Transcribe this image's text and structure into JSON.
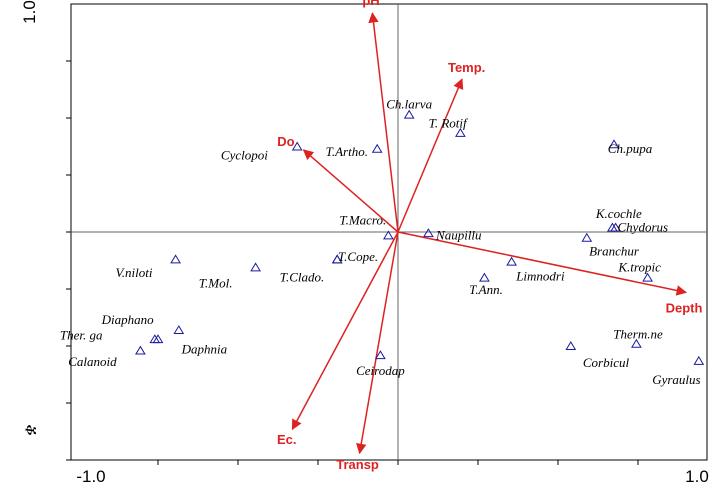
{
  "chart_data": {
    "type": "scatter",
    "subtype": "ordination-biplot",
    "xlim": [
      -1.0,
      1.0
    ],
    "ylim": [
      -1.0,
      1.0
    ],
    "x_tick_labels": [
      "-1.0",
      "1.0"
    ],
    "y_tick_labels": [
      "1.0"
    ],
    "y_bottom_mark": "ቋ",
    "grid": false,
    "colors": {
      "species": "#1a1aa0",
      "environment": "#dd2222",
      "axes": "#666666",
      "frame": "#000000"
    },
    "species": [
      {
        "name": "Ch.larva",
        "x": 0.07,
        "y": 1.03
      },
      {
        "name": "T. Rotif",
        "x": 0.39,
        "y": 0.87
      },
      {
        "name": "T.Artho.",
        "x": -0.13,
        "y": 0.73
      },
      {
        "name": "Cyclopoi",
        "x": -0.63,
        "y": 0.75
      },
      {
        "name": "Ch.pupa",
        "x": 1.35,
        "y": 0.77
      },
      {
        "name": "K.cochle",
        "x": 1.34,
        "y": 0.04
      },
      {
        "name": "Chydorus",
        "x": 1.36,
        "y": 0.04
      },
      {
        "name": "Branchur",
        "x": 1.18,
        "y": -0.05
      },
      {
        "name": "K.tropic",
        "x": 1.56,
        "y": -0.4
      },
      {
        "name": "T.Macro.",
        "x": -0.06,
        "y": -0.03
      },
      {
        "name": "Naupillu",
        "x": 0.19,
        "y": -0.01
      },
      {
        "name": "T.Cope.",
        "x": -0.38,
        "y": -0.24
      },
      {
        "name": "T.Ann.",
        "x": 0.54,
        "y": -0.4
      },
      {
        "name": "Limnodri",
        "x": 0.71,
        "y": -0.26
      },
      {
        "name": "V.niloti",
        "x": -1.39,
        "y": -0.24
      },
      {
        "name": "T.Mol.",
        "x": -0.89,
        "y": -0.31
      },
      {
        "name": "T.Clado.",
        "x": -0.38,
        "y": -0.24
      },
      {
        "name": "Diaphano",
        "x": -1.37,
        "y": -0.86
      },
      {
        "name": "Ther. ga",
        "x": -1.52,
        "y": -0.94
      },
      {
        "name": "Daphnia",
        "x": -1.5,
        "y": -0.94
      },
      {
        "name": "Calanoid",
        "x": -1.61,
        "y": -1.04
      },
      {
        "name": "Ceirodap",
        "x": -0.11,
        "y": -1.08
      },
      {
        "name": "Therm.ne",
        "x": 1.49,
        "y": -0.98
      },
      {
        "name": "Corbicul",
        "x": 1.08,
        "y": -1.0
      },
      {
        "name": "Gyraulus",
        "x": 1.88,
        "y": -1.13
      }
    ],
    "environment": [
      {
        "name": "pH",
        "x": -0.16,
        "y": 1.92
      },
      {
        "name": "Temp.",
        "x": 0.4,
        "y": 1.34
      },
      {
        "name": "Do",
        "x": -0.59,
        "y": 0.72
      },
      {
        "name": "Depth",
        "x": 1.8,
        "y": -0.53
      },
      {
        "name": "Ec.",
        "x": -0.66,
        "y": -1.73
      },
      {
        "name": "Transp",
        "x": -0.24,
        "y": -1.94
      }
    ]
  }
}
